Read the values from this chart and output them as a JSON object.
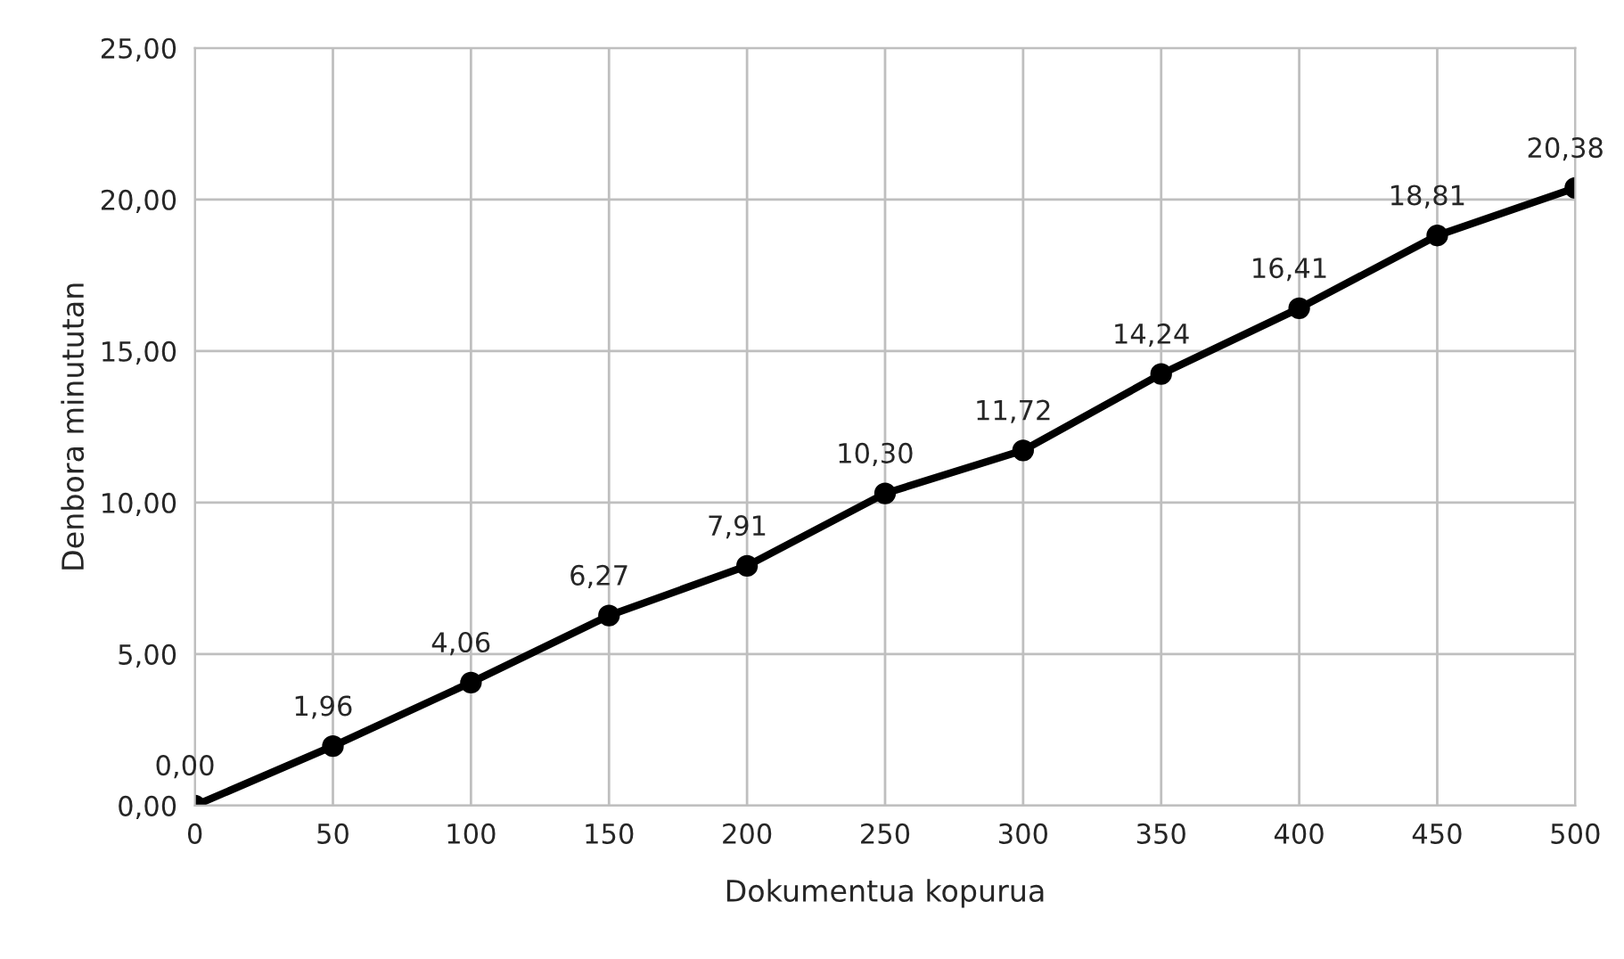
{
  "chart_data": {
    "type": "line",
    "xlabel": "Dokumentua kopurua",
    "ylabel": "Denbora minututan",
    "x": [
      0,
      50,
      100,
      150,
      200,
      250,
      300,
      350,
      400,
      450,
      500
    ],
    "series": [
      {
        "color": "#000000",
        "values": [
          0.0,
          1.96,
          4.06,
          6.27,
          7.91,
          10.3,
          11.72,
          14.24,
          16.41,
          18.81,
          20.38
        ],
        "value_labels": [
          "0,00",
          "1,96",
          "4,06",
          "6,27",
          "7,91",
          "10,30",
          "11,72",
          "14,24",
          "16,41",
          "18,81",
          "20,38"
        ]
      }
    ],
    "xlim": [
      0,
      500
    ],
    "xticks": [
      0,
      50,
      100,
      150,
      200,
      250,
      300,
      350,
      400,
      450,
      500
    ],
    "ylim": [
      0,
      25
    ],
    "yticks": [
      {
        "value": 0,
        "label": "0,00"
      },
      {
        "value": 5,
        "label": "5,00"
      },
      {
        "value": 10,
        "label": "10,00"
      },
      {
        "value": 15,
        "label": "15,00"
      },
      {
        "value": 20,
        "label": "20,00"
      },
      {
        "value": 25,
        "label": "25,00"
      }
    ],
    "grid": true,
    "marker": "circle",
    "line_style": "solid",
    "legend": false
  }
}
